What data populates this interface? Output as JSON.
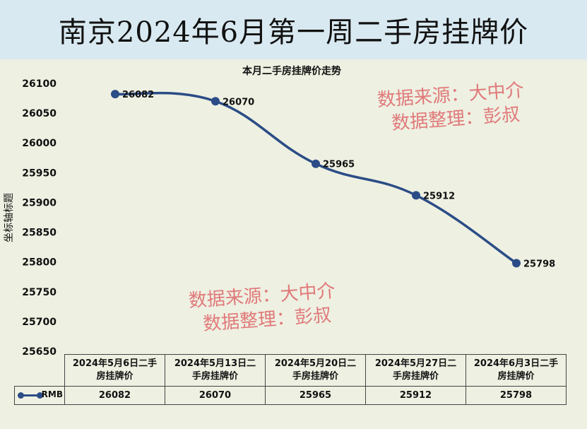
{
  "header": {
    "title": "南京2024年6月第一周二手房挂牌价"
  },
  "watermarks": [
    {
      "line1": "数据来源：大中介",
      "line2": "数据整理：彭叔"
    },
    {
      "line1": "数据来源：大中介",
      "line2": "数据整理：彭叔"
    }
  ],
  "colors": {
    "series": "#2b4c86",
    "watermark": "#e07a7a",
    "header_bg": "#d9e9f1",
    "plot_bg": "#eef0e2"
  },
  "chart_data": {
    "type": "line",
    "title": "本月二手房挂牌价走势",
    "ylabel": "坐标轴标题",
    "xlabel": "",
    "ylim": [
      25650,
      26100
    ],
    "yticks": [
      26100,
      26050,
      26000,
      25950,
      25900,
      25850,
      25800,
      25750,
      25700,
      25650
    ],
    "categories": [
      "2024年5月6日二手房挂牌价",
      "2024年5月13日二手房挂牌价",
      "2024年5月20日二手房挂牌价",
      "2024年5月27日二手房挂牌价",
      "2024年6月3日二手房挂牌价"
    ],
    "category_lines": [
      [
        "2024年5月6日二手",
        "房挂牌价"
      ],
      [
        "2024年5月13日二",
        "手房挂牌价"
      ],
      [
        "2024年5月20日二",
        "手房挂牌价"
      ],
      [
        "2024年5月27日二",
        "手房挂牌价"
      ],
      [
        "2024年6月3日二手",
        "房挂牌价"
      ]
    ],
    "series": [
      {
        "name": "RMB",
        "values": [
          26082,
          26070,
          25965,
          25912,
          25798
        ]
      }
    ],
    "data_labels": [
      "26082",
      "26070",
      "25965",
      "25912",
      "25798"
    ],
    "smooth": true,
    "data_table": true
  }
}
